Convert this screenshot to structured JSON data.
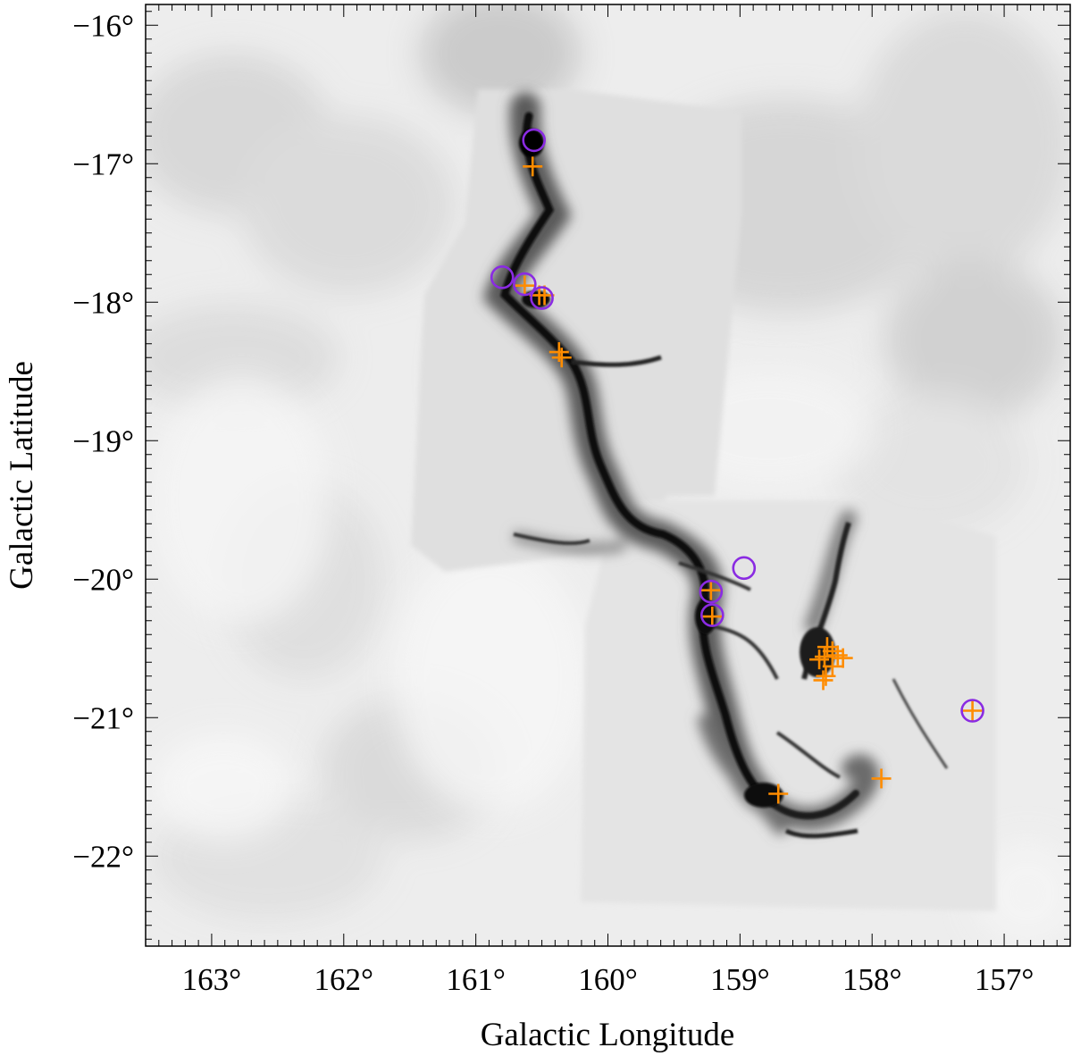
{
  "chart_data": {
    "type": "scatter",
    "title": "",
    "xlabel": "Galactic Longitude",
    "ylabel": "Galactic Latitude",
    "xlim": [
      163.5,
      156.5
    ],
    "ylim": [
      -22.65,
      -15.85
    ],
    "x_reversed": true,
    "grid": false,
    "legend": "none",
    "x_ticks": [
      163,
      162,
      161,
      160,
      159,
      158,
      157
    ],
    "x_tick_labels": [
      "163°",
      "162°",
      "161°",
      "160°",
      "159°",
      "158°",
      "157°"
    ],
    "y_ticks": [
      -16,
      -17,
      -18,
      -19,
      -20,
      -21,
      -22
    ],
    "y_tick_labels": [
      "−16°",
      "−17°",
      "−18°",
      "−19°",
      "−20°",
      "−21°",
      "−22°"
    ],
    "background": "grayscale dust column density map",
    "series": [
      {
        "marker": "plus",
        "color": "#ff8c00",
        "points": [
          {
            "l": 160.57,
            "b": -17.02
          },
          {
            "l": 160.63,
            "b": -17.88
          },
          {
            "l": 160.52,
            "b": -17.95
          },
          {
            "l": 160.48,
            "b": -17.95
          },
          {
            "l": 160.37,
            "b": -18.36
          },
          {
            "l": 160.35,
            "b": -18.4
          },
          {
            "l": 159.22,
            "b": -20.08
          },
          {
            "l": 159.21,
            "b": -20.27
          },
          {
            "l": 158.34,
            "b": -20.49
          },
          {
            "l": 158.3,
            "b": -20.52
          },
          {
            "l": 158.26,
            "b": -20.55
          },
          {
            "l": 158.36,
            "b": -20.56
          },
          {
            "l": 158.22,
            "b": -20.57
          },
          {
            "l": 158.4,
            "b": -20.58
          },
          {
            "l": 158.3,
            "b": -20.63
          },
          {
            "l": 158.35,
            "b": -20.7
          },
          {
            "l": 158.37,
            "b": -20.73
          },
          {
            "l": 157.24,
            "b": -20.95
          },
          {
            "l": 157.93,
            "b": -21.44
          },
          {
            "l": 158.71,
            "b": -21.55
          }
        ]
      },
      {
        "marker": "circle",
        "color": "#8a2be2",
        "points": [
          {
            "l": 160.56,
            "b": -16.83
          },
          {
            "l": 160.8,
            "b": -17.82
          },
          {
            "l": 160.63,
            "b": -17.87
          },
          {
            "l": 160.5,
            "b": -17.97
          },
          {
            "l": 158.97,
            "b": -19.92
          },
          {
            "l": 159.22,
            "b": -20.09
          },
          {
            "l": 159.21,
            "b": -20.26
          },
          {
            "l": 157.24,
            "b": -20.95
          }
        ]
      }
    ]
  }
}
